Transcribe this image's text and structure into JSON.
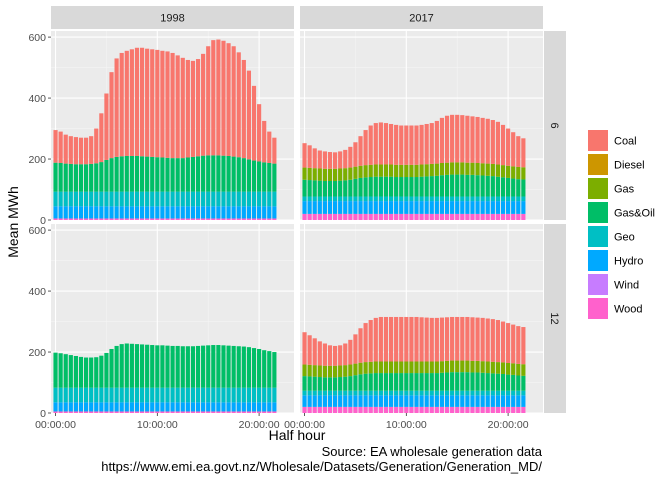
{
  "chart_data": {
    "type": "bar",
    "subtype": "stacked-bar-facet-grid",
    "xlabel": "Half hour",
    "ylabel": "Mean MWh",
    "ylim": [
      0,
      620
    ],
    "yticks": [
      0,
      200,
      400,
      600
    ],
    "xtick_labels": [
      "00:00:00",
      "10:00:00",
      "20:00:00"
    ],
    "xtick_positions": [
      0,
      20,
      40
    ],
    "facet_cols": [
      "1998",
      "2017"
    ],
    "facet_rows": [
      "6",
      "12"
    ],
    "legend_position": "right",
    "grid": true,
    "categories": [
      "Coal",
      "Diesel",
      "Gas",
      "Gas&Oil",
      "Geo",
      "Hydro",
      "Wind",
      "Wood"
    ],
    "colors": {
      "Coal": "#F8766D",
      "Diesel": "#CD9600",
      "Gas": "#7CAE00",
      "Gas&Oil": "#00BE67",
      "Geo": "#00BFC4",
      "Hydro": "#00A9FF",
      "Wind": "#C77CFF",
      "Wood": "#FF61CC"
    },
    "panels": [
      {
        "col": "1998",
        "row": "6",
        "totals": [
          295,
          290,
          280,
          275,
          272,
          270,
          270,
          275,
          300,
          350,
          415,
          485,
          530,
          548,
          555,
          560,
          565,
          565,
          562,
          560,
          558,
          555,
          553,
          548,
          540,
          532,
          525,
          522,
          528,
          545,
          570,
          590,
          592,
          588,
          580,
          570,
          550,
          525,
          490,
          440,
          380,
          325,
          290,
          270
        ],
        "components": {
          "Wood": 5,
          "Wind": 0,
          "Diesel": 0,
          "Hydro": 40,
          "Geo": 48,
          "Gas": 0,
          "Gas&Oil": [
            95,
            94,
            92,
            91,
            90,
            90,
            90,
            91,
            93,
            97,
            104,
            110,
            114,
            116,
            117,
            117,
            117,
            116,
            115,
            114,
            113,
            112,
            111,
            110,
            110,
            110,
            112,
            114,
            116,
            118,
            119,
            119,
            119,
            118,
            117,
            115,
            113,
            110,
            106,
            102,
            99,
            96,
            94,
            92
          ]
        }
      },
      {
        "col": "2017",
        "row": "6",
        "totals": [
          252,
          245,
          235,
          228,
          225,
          223,
          222,
          225,
          230,
          240,
          255,
          275,
          295,
          310,
          318,
          320,
          318,
          315,
          312,
          310,
          310,
          310,
          310,
          312,
          315,
          318,
          325,
          335,
          342,
          345,
          345,
          344,
          342,
          340,
          338,
          335,
          332,
          328,
          322,
          312,
          300,
          288,
          275,
          268
        ],
        "components": {
          "Wood": 20,
          "Wind": 0,
          "Diesel": 0,
          "Hydro": 42,
          "Geo": 15,
          "Gas&Oil": [
            55,
            54,
            53,
            52,
            51,
            51,
            51,
            52,
            53,
            55,
            58,
            61,
            63,
            64,
            65,
            65,
            65,
            65,
            64,
            64,
            64,
            64,
            64,
            65,
            66,
            67,
            68,
            70,
            71,
            72,
            72,
            72,
            71,
            71,
            70,
            69,
            68,
            67,
            65,
            63,
            61,
            59,
            57,
            56
          ],
          "Gas": 40
        }
      },
      {
        "col": "1998",
        "row": "12",
        "totals": [
          198,
          196,
          193,
          190,
          187,
          184,
          182,
          182,
          183,
          188,
          197,
          210,
          220,
          226,
          228,
          227,
          226,
          225,
          224,
          223,
          222,
          222,
          221,
          220,
          220,
          219,
          219,
          219,
          220,
          221,
          222,
          223,
          223,
          222,
          221,
          220,
          219,
          218,
          216,
          213,
          210,
          206,
          203,
          200
        ],
        "components": {
          "Wood": 5,
          "Wind": 0,
          "Diesel": 0,
          "Gas": 0,
          "Hydro": 30,
          "Geo": 48
        }
      },
      {
        "col": "2017",
        "row": "12",
        "totals": [
          265,
          255,
          245,
          235,
          228,
          222,
          220,
          222,
          228,
          240,
          258,
          278,
          295,
          305,
          312,
          315,
          315,
          315,
          315,
          315,
          315,
          315,
          315,
          314,
          313,
          312,
          312,
          313,
          314,
          315,
          315,
          315,
          315,
          314,
          313,
          312,
          310,
          308,
          305,
          300,
          295,
          290,
          285,
          282
        ],
        "components": {
          "Wood": 20,
          "Wind": 0,
          "Diesel": 0,
          "Hydro": 38,
          "Geo": 15,
          "Gas&Oil": [
            48,
            47,
            46,
            45,
            44,
            44,
            44,
            45,
            46,
            48,
            51,
            54,
            56,
            57,
            58,
            58,
            58,
            58,
            58,
            58,
            58,
            58,
            58,
            58,
            58,
            58,
            58,
            59,
            60,
            61,
            61,
            61,
            61,
            60,
            60,
            59,
            58,
            57,
            56,
            55,
            53,
            52,
            50,
            49
          ],
          "Gas": 38
        }
      }
    ],
    "caption_lines": [
      "Source: EA wholesale generation data",
      "https://www.emi.ea.govt.nz/Wholesale/Datasets/Generation/Generation_MD/"
    ]
  }
}
